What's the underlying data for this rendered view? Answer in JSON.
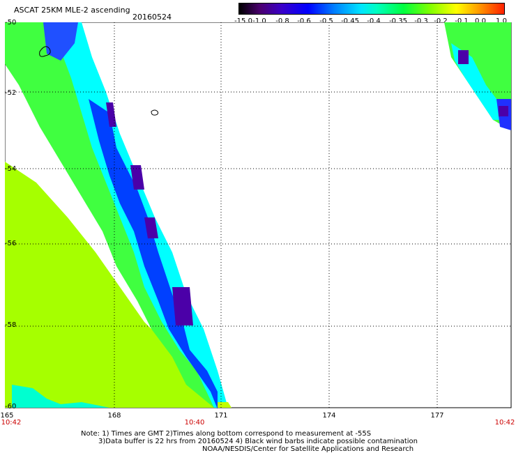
{
  "header": {
    "title": "ASCAT 25KM MLE-2 ascending",
    "date": "20160524"
  },
  "colorbar": {
    "ticks": [
      "-15.0",
      "-1.0",
      "-0.8",
      "-0.6",
      "-0.5",
      "-0.45",
      "-0.4",
      "-0.35",
      "-0.3",
      "-0.2",
      "-0.1",
      "0.0",
      "1.0"
    ]
  },
  "map": {
    "lat_labels": [
      "-50",
      "-52",
      "-54",
      "-56",
      "-58",
      "-60"
    ],
    "lon_labels": [
      "165",
      "168",
      "171",
      "174",
      "177"
    ],
    "time_labels": [
      "10:42",
      "10:40",
      "10:42"
    ],
    "colors": {
      "purple": "#4b00a8",
      "blue": "#0000ff",
      "cyan": "#00ffff",
      "green": "#00ff60",
      "yellowgreen": "#a0ff00",
      "grid": "#000000"
    }
  },
  "footer": {
    "line1": "Note: 1) Times are GMT 2)Times along bottom correspond to measurement at -55S",
    "line2": "3)Data buffer is 22 hrs from 20160524 4) Black wind barbs indicate possible contamination",
    "line3": "NOAA/NESDIS/Center for Satellite Applications and Research"
  }
}
